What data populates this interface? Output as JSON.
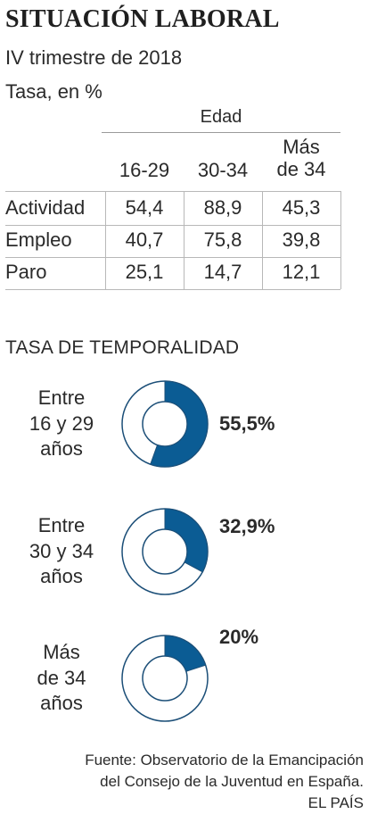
{
  "header": {
    "title": "SITUACIÓN LABORAL",
    "subtitle_1": "IV trimestre de 2018",
    "subtitle_2": "Tasa, en %"
  },
  "table": {
    "group_header": "Edad",
    "columns": [
      {
        "line1": "",
        "line2": "16-29"
      },
      {
        "line1": "",
        "line2": "30-34"
      },
      {
        "line1": "Más",
        "line2": "de 34"
      }
    ],
    "rows": [
      {
        "label": "Actividad",
        "values": [
          "54,4",
          "88,9",
          "45,3"
        ]
      },
      {
        "label": "Empleo",
        "values": [
          "40,7",
          "75,8",
          "39,8"
        ]
      },
      {
        "label": "Paro",
        "values": [
          "25,1",
          "14,7",
          "12,1"
        ]
      }
    ]
  },
  "temporality": {
    "title": "TASA DE TEMPORALIDAD",
    "accent_color": "#0b5c94",
    "outline_color": "#1c4f78",
    "items": [
      {
        "label_lines": [
          "Entre",
          "16 y 29",
          "años"
        ],
        "value_label": "55,5%"
      },
      {
        "label_lines": [
          "Entre",
          "30 y 34",
          "años"
        ],
        "value_label": "32,9%"
      },
      {
        "label_lines": [
          "Más",
          "de 34",
          "años"
        ],
        "value_label": "20%"
      }
    ]
  },
  "chart_data": [
    {
      "type": "table",
      "title": "SITUACIÓN LABORAL",
      "subtitle": "IV trimestre de 2018",
      "unit": "Tasa, en %",
      "group_header": "Edad",
      "columns": [
        "16-29",
        "30-34",
        "Más de 34"
      ],
      "rows": [
        {
          "name": "Actividad",
          "values": [
            54.4,
            88.9,
            45.3
          ]
        },
        {
          "name": "Empleo",
          "values": [
            40.7,
            75.8,
            39.8
          ]
        },
        {
          "name": "Paro",
          "values": [
            25.1,
            14.7,
            12.1
          ]
        }
      ]
    },
    {
      "type": "pie",
      "title": "TASA DE TEMPORALIDAD",
      "categories": [
        "Entre 16 y 29 años",
        "Entre 30 y 34 años",
        "Más de 34 años"
      ],
      "values": [
        55.5,
        32.9,
        20
      ]
    }
  ],
  "footer": {
    "line_1": "Fuente: Observatorio de la Emancipación",
    "line_2": "del Consejo de la Juventud en España.",
    "line_3": "EL PAÍS"
  }
}
